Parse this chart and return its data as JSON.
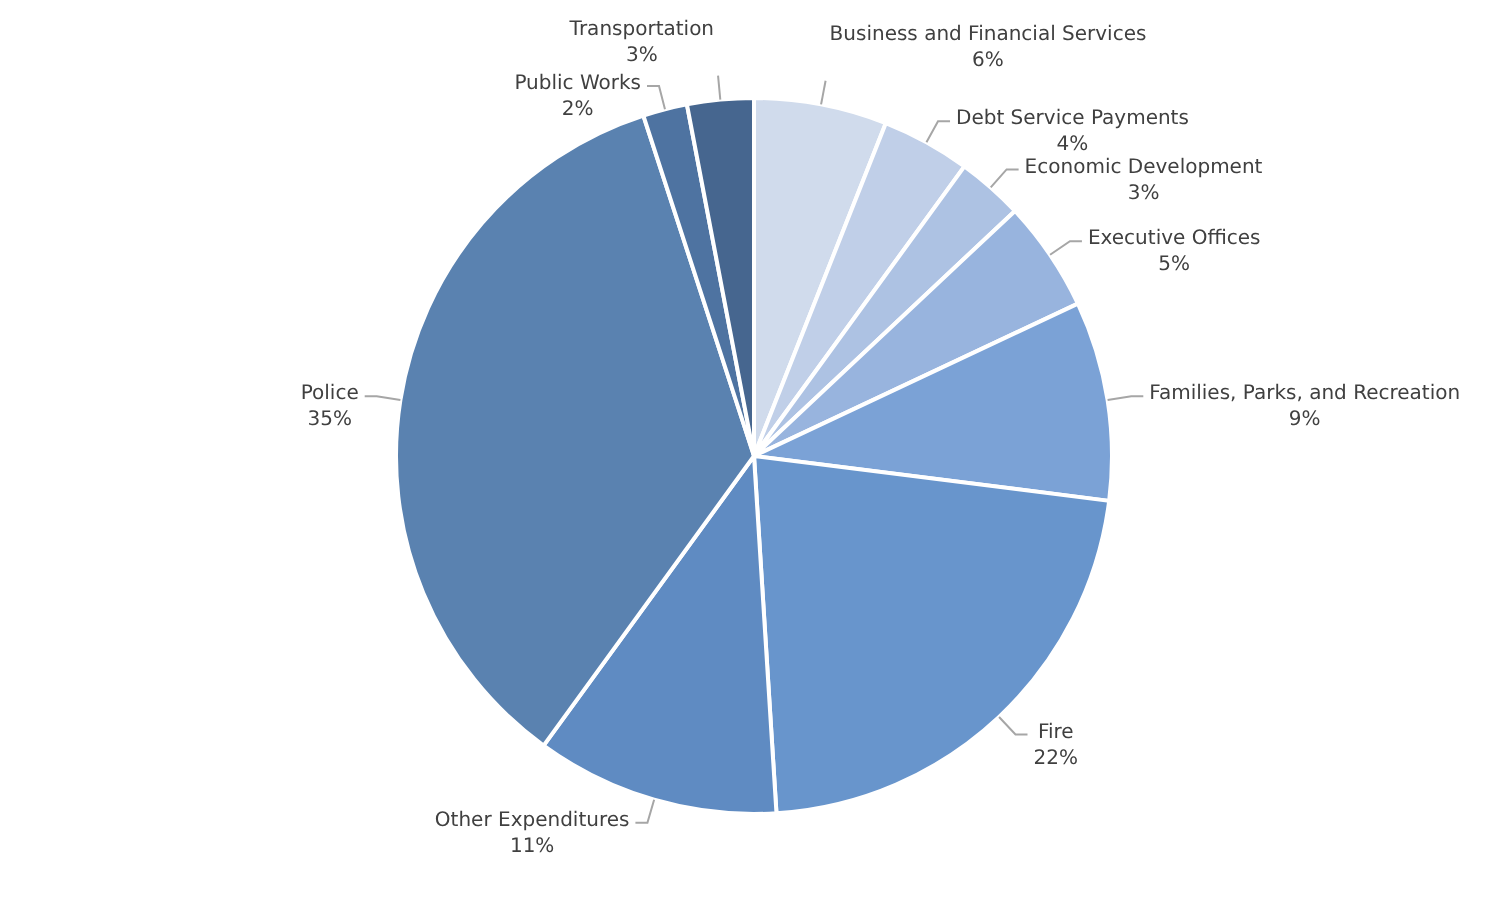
{
  "chart_data": {
    "type": "pie",
    "categories": [
      "Business and Financial Services",
      "Debt Service Payments",
      "Economic Development",
      "Executive Offices",
      "Families, Parks, and Recreation",
      "Fire",
      "Other Expenditures",
      "Police",
      "Public Works",
      "Transportation"
    ],
    "values": [
      6,
      4,
      3,
      5,
      9,
      22,
      11,
      35,
      2,
      3
    ],
    "value_labels": [
      "6%",
      "4%",
      "3%",
      "5%",
      "9%",
      "22%",
      "11%",
      "35%",
      "2%",
      "3%"
    ],
    "colors": [
      "#d0dbec",
      "#c0cfe8",
      "#adc2e3",
      "#98b4de",
      "#7ba2d6",
      "#6895cc",
      "#5f8bc2",
      "#5a82b0",
      "#4e73a1",
      "#46668f"
    ],
    "legend": false
  }
}
